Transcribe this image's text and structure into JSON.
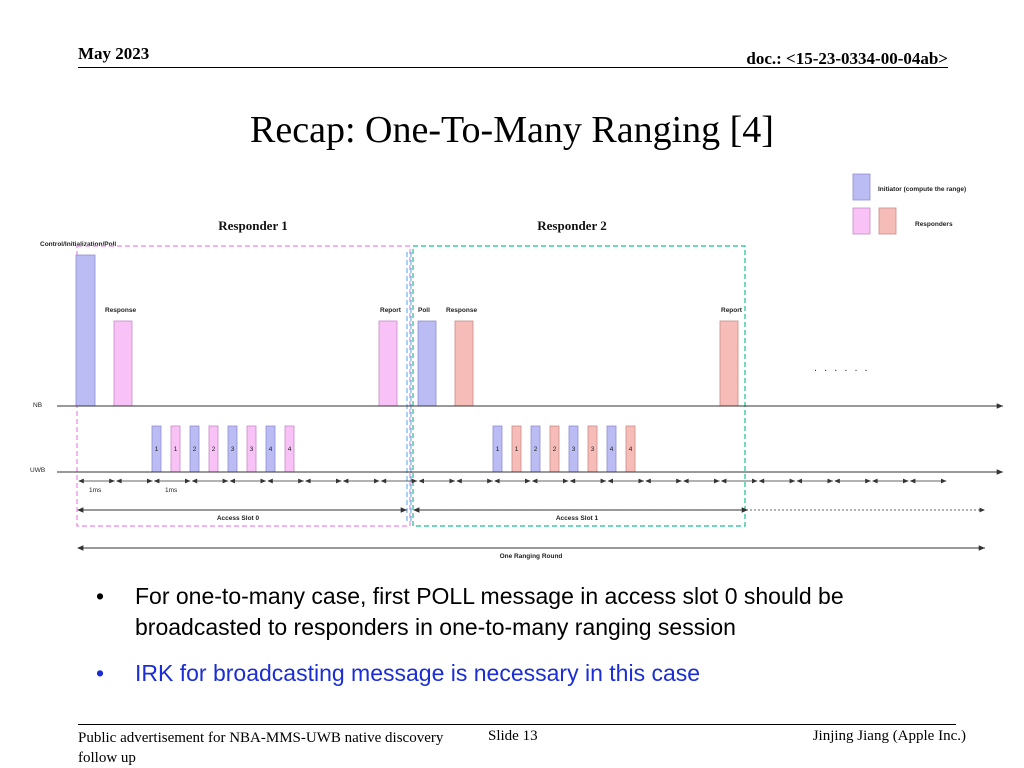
{
  "header": {
    "date": "May 2023",
    "doc_id": "doc.: <15-23-0334-00-04ab>"
  },
  "title": "Recap: One-To-Many Ranging [4]",
  "legend": {
    "initiator": "Initiator (compute the range)",
    "responders": "Responders",
    "initiator_color": "#bbbcf4",
    "responder1_color": "#f8c2f6",
    "responder2_color": "#f6bcb8"
  },
  "diagram": {
    "responder1_title": "Responder 1",
    "responder2_title": "Responder 2",
    "control_label": "Control/Initialization/Poll",
    "response_label_1": "Response",
    "report_label_1": "Report",
    "poll_label": "Poll",
    "response_label_2": "Response",
    "report_label_2": "Report",
    "ellipsis": ". . . . . .",
    "nb_label": "NB",
    "uwb_label": "UWB",
    "slot0_uwb_labels": [
      "1",
      "1",
      "2",
      "2",
      "3",
      "3",
      "4",
      "4"
    ],
    "slot1_uwb_labels": [
      "1",
      "1",
      "2",
      "2",
      "3",
      "3",
      "4",
      "4"
    ],
    "interval_label_1": "1ms",
    "interval_label_2": "1ms",
    "access_slot_0": "Access Slot 0",
    "access_slot_1": "Access Slot 1",
    "ranging_round": "One Ranging Round",
    "box1_color": "#e986f0",
    "box2_color": "#1fbf8f",
    "divider_color": "#6fb3e4"
  },
  "bullets": [
    "For one-to-many case, first POLL message in access slot 0 should be broadcasted to responders in one-to-many ranging session",
    "IRK for broadcasting message is necessary in this case"
  ],
  "bullet_marker": "•",
  "footer": {
    "left": "Public advertisement for NBA-MMS-UWB native discovery follow up",
    "slide": "Slide 13",
    "author": "Jinjing Jiang (Apple Inc.)"
  }
}
